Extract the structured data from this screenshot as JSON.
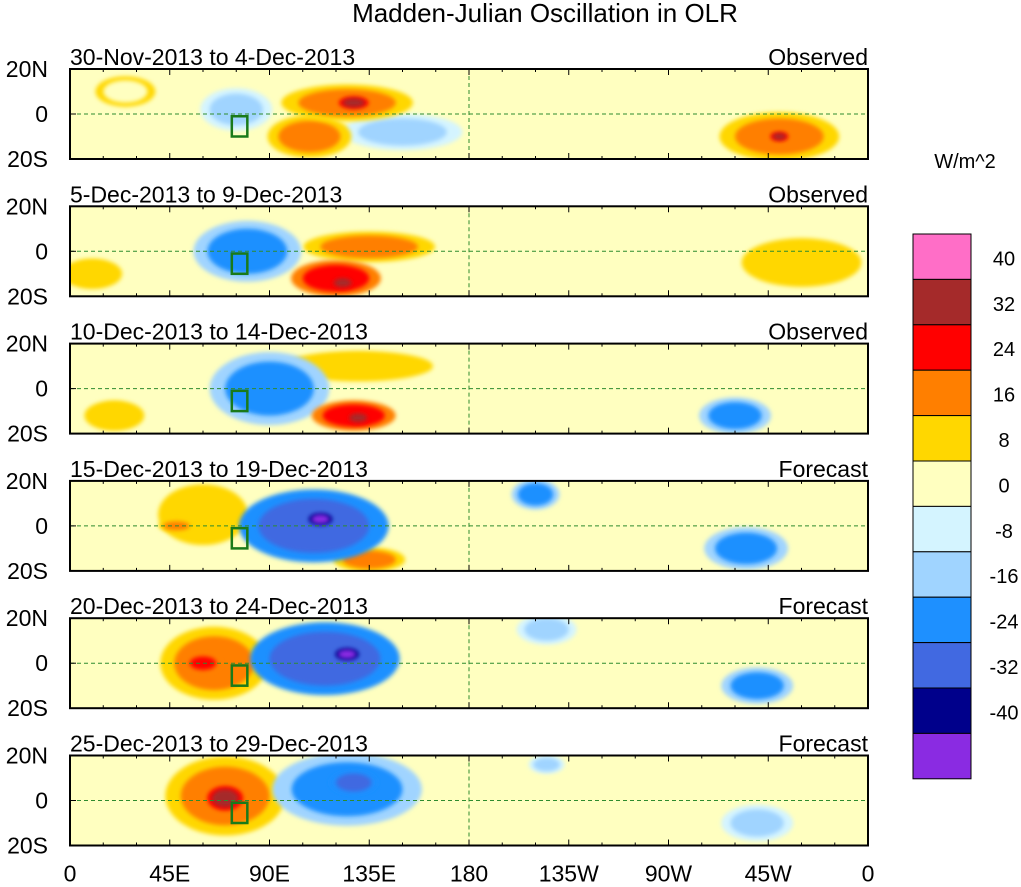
{
  "chart_data": {
    "type": "heatmap",
    "title": "Madden-Julian Oscillation in OLR",
    "units_label": "W/m^2",
    "x_ticks": [
      "0",
      "45E",
      "90E",
      "135E",
      "180",
      "135W",
      "90W",
      "45W",
      "0"
    ],
    "x_tick_values_deg": [
      0,
      45,
      90,
      135,
      180,
      225,
      270,
      315,
      360
    ],
    "xlim_deg": [
      0,
      360
    ],
    "y_ticks": [
      "20N",
      "0",
      "20S"
    ],
    "y_tick_values_deg": [
      20,
      0,
      -20
    ],
    "ylim_deg": [
      -20,
      20
    ],
    "colorbar": {
      "labels": [
        "40",
        "32",
        "24",
        "16",
        "8",
        "0",
        "-8",
        "-16",
        "-24",
        "-32",
        "-40"
      ],
      "colors": [
        "#ff6ec7",
        "#a52a2a",
        "#ff0000",
        "#ff7f00",
        "#ffd700",
        "#ffffc0",
        "#d4f4ff",
        "#a0d4ff",
        "#1e90ff",
        "#4169e1",
        "#00008b",
        "#8a2be2"
      ]
    },
    "panels": [
      {
        "period": "30-Nov-2013 to 4-Dec-2013",
        "kind": "Observed",
        "anomalies": [
          {
            "lon": 75,
            "lat": 2,
            "value": -16,
            "rx": 12,
            "ry": 7
          },
          {
            "lon": 125,
            "lat": 5,
            "value": 22,
            "rx": 22,
            "ry": 6
          },
          {
            "lon": 128,
            "lat": 5,
            "value": 34,
            "rx": 5,
            "ry": 2
          },
          {
            "lon": 108,
            "lat": -10,
            "value": 18,
            "rx": 14,
            "ry": 7
          },
          {
            "lon": 150,
            "lat": -8,
            "value": -10,
            "rx": 20,
            "ry": 6
          },
          {
            "lon": 320,
            "lat": -10,
            "value": 20,
            "rx": 20,
            "ry": 8
          },
          {
            "lon": 320,
            "lat": -10,
            "value": 32,
            "rx": 3,
            "ry": 1.5
          },
          {
            "lon": 25,
            "lat": 10,
            "value": 6,
            "rx": 10,
            "ry": 5
          }
        ]
      },
      {
        "period": "5-Dec-2013 to 9-Dec-2013",
        "kind": "Observed",
        "anomalies": [
          {
            "lon": 80,
            "lat": 0,
            "value": -20,
            "rx": 18,
            "ry": 10
          },
          {
            "lon": 135,
            "lat": 2,
            "value": 18,
            "rx": 22,
            "ry": 5
          },
          {
            "lon": 120,
            "lat": -12,
            "value": 24,
            "rx": 15,
            "ry": 6
          },
          {
            "lon": 123,
            "lat": -14,
            "value": 36,
            "rx": 4,
            "ry": 2
          },
          {
            "lon": 330,
            "lat": -5,
            "value": 10,
            "rx": 20,
            "ry": 8
          },
          {
            "lon": 10,
            "lat": -10,
            "value": 8,
            "rx": 10,
            "ry": 5
          }
        ]
      },
      {
        "period": "10-Dec-2013 to 14-Dec-2013",
        "kind": "Observed",
        "anomalies": [
          {
            "lon": 90,
            "lat": 0,
            "value": -24,
            "rx": 20,
            "ry": 12
          },
          {
            "lon": 130,
            "lat": 10,
            "value": 8,
            "rx": 25,
            "ry": 5
          },
          {
            "lon": 128,
            "lat": -12,
            "value": 24,
            "rx": 14,
            "ry": 5
          },
          {
            "lon": 130,
            "lat": -13,
            "value": 34,
            "rx": 4,
            "ry": 2
          },
          {
            "lon": 300,
            "lat": -12,
            "value": -18,
            "rx": 12,
            "ry": 6
          },
          {
            "lon": 20,
            "lat": -12,
            "value": 10,
            "rx": 10,
            "ry": 5
          }
        ]
      },
      {
        "period": "15-Dec-2013 to 19-Dec-2013",
        "kind": "Forecast",
        "anomalies": [
          {
            "lon": 110,
            "lat": 0,
            "value": -26,
            "rx": 25,
            "ry": 12
          },
          {
            "lon": 113,
            "lat": 3,
            "value": -42,
            "rx": 4,
            "ry": 2
          },
          {
            "lon": 60,
            "lat": 5,
            "value": 10,
            "rx": 15,
            "ry": 10
          },
          {
            "lon": 48,
            "lat": 0,
            "value": 18,
            "rx": 6,
            "ry": 2
          },
          {
            "lon": 135,
            "lat": -15,
            "value": 20,
            "rx": 12,
            "ry": 4
          },
          {
            "lon": 210,
            "lat": 14,
            "value": -18,
            "rx": 8,
            "ry": 5
          },
          {
            "lon": 305,
            "lat": -10,
            "value": -22,
            "rx": 14,
            "ry": 7
          }
        ]
      },
      {
        "period": "20-Dec-2013 to 24-Dec-2013",
        "kind": "Forecast",
        "anomalies": [
          {
            "lon": 115,
            "lat": 2,
            "value": -26,
            "rx": 25,
            "ry": 12
          },
          {
            "lon": 125,
            "lat": 4,
            "value": -42,
            "rx": 4,
            "ry": 2
          },
          {
            "lon": 65,
            "lat": 0,
            "value": 16,
            "rx": 18,
            "ry": 12
          },
          {
            "lon": 60,
            "lat": 0,
            "value": 26,
            "rx": 6,
            "ry": 3
          },
          {
            "lon": 215,
            "lat": 15,
            "value": -14,
            "rx": 10,
            "ry": 5
          },
          {
            "lon": 310,
            "lat": -10,
            "value": -20,
            "rx": 12,
            "ry": 6
          }
        ]
      },
      {
        "period": "25-Dec-2013 to 29-Dec-2013",
        "kind": "Forecast",
        "anomalies": [
          {
            "lon": 70,
            "lat": 2,
            "value": 20,
            "rx": 20,
            "ry": 13
          },
          {
            "lon": 70,
            "lat": 1,
            "value": 34,
            "rx": 6,
            "ry": 4
          },
          {
            "lon": 125,
            "lat": 5,
            "value": -24,
            "rx": 25,
            "ry": 12
          },
          {
            "lon": 128,
            "lat": 8,
            "value": -32,
            "rx": 8,
            "ry": 4
          },
          {
            "lon": 215,
            "lat": 16,
            "value": -16,
            "rx": 6,
            "ry": 3
          },
          {
            "lon": 310,
            "lat": -10,
            "value": -12,
            "rx": 12,
            "ry": 6
          }
        ]
      }
    ]
  }
}
